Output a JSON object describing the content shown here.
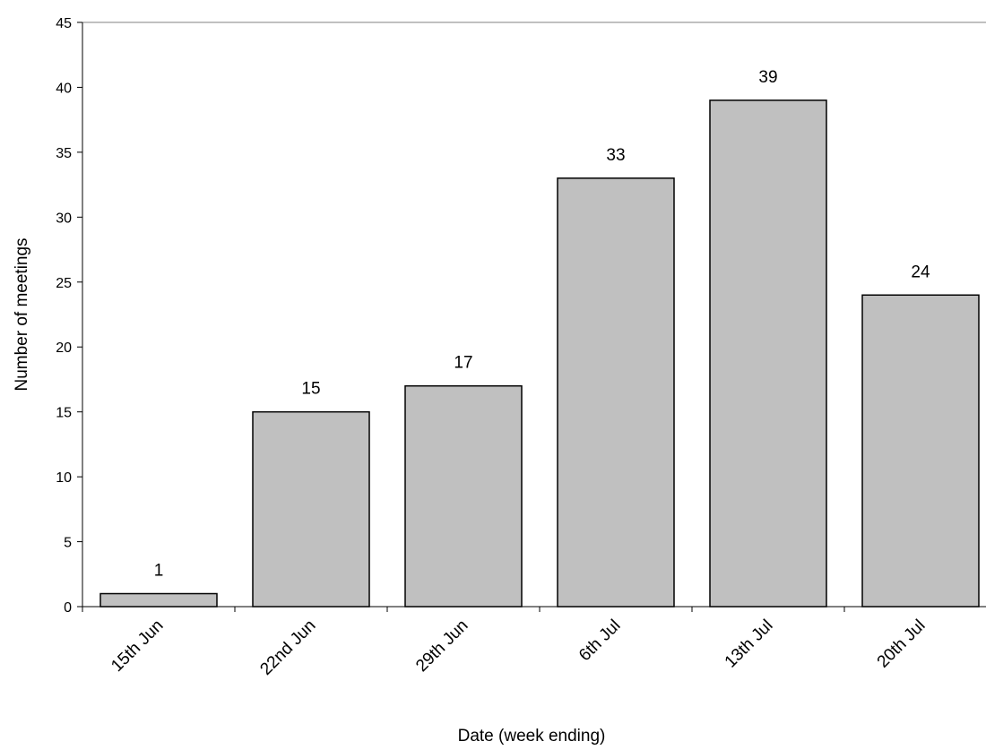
{
  "chart_data": {
    "type": "bar",
    "categories": [
      "15th Jun",
      "22nd Jun",
      "29th Jun",
      "6th Jul",
      "13th Jul",
      "20th Jul"
    ],
    "values": [
      1,
      15,
      17,
      33,
      39,
      24
    ],
    "data_labels": [
      "1",
      "15",
      "17",
      "33",
      "39",
      "24"
    ],
    "title": "",
    "xlabel": "Date (week ending)",
    "ylabel": "Number of meetings",
    "ylim": [
      0,
      45
    ],
    "yticks": [
      0,
      5,
      10,
      15,
      20,
      25,
      30,
      35,
      40,
      45
    ],
    "grid": false,
    "legend": "none",
    "bar_color": "#c0c0c0",
    "bar_edge_color": "#000000",
    "axis_color": "#000000",
    "frame_color": "#808080"
  }
}
